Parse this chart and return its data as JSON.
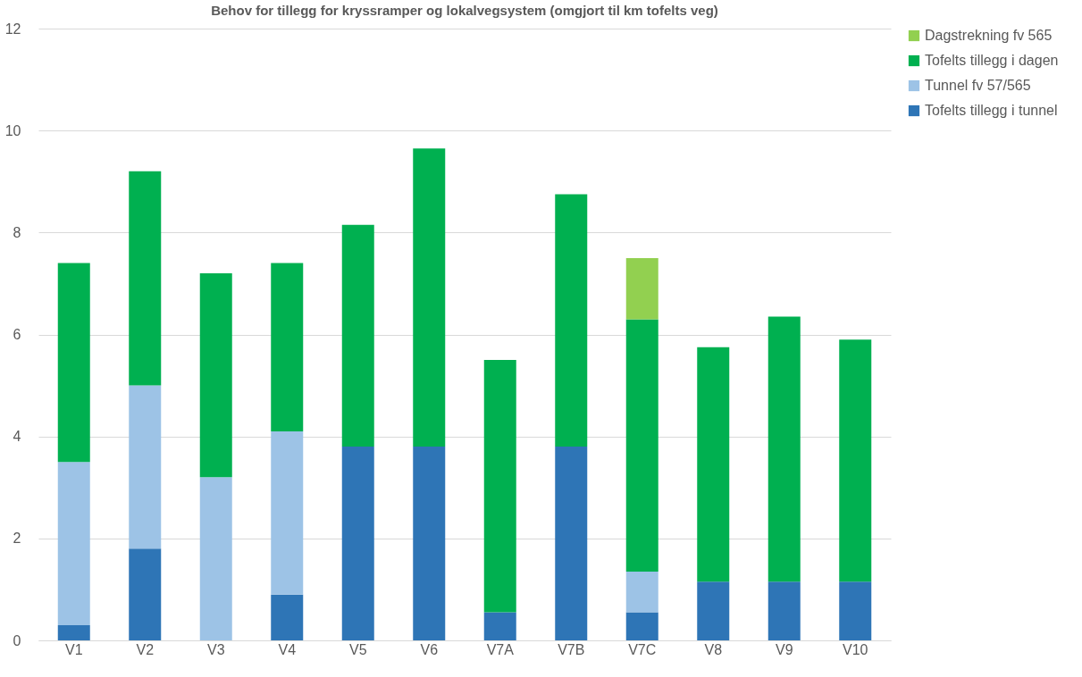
{
  "chart_data": {
    "type": "bar",
    "title": "Behov for tillegg for kryssramper og lokalvegsystem (omgjort til km tofelts veg)",
    "categories": [
      "V1",
      "V2",
      "V3",
      "V4",
      "V5",
      "V6",
      "V7A",
      "V7B",
      "V7C",
      "V8",
      "V9",
      "V10"
    ],
    "stacked": true,
    "series": [
      {
        "name": "Tofelts tillegg i tunnel",
        "color": "#2e75b6",
        "values": [
          0.3,
          1.8,
          0,
          0.9,
          3.8,
          3.8,
          0.55,
          3.8,
          0.55,
          1.15,
          1.15,
          1.15
        ]
      },
      {
        "name": "Tunnel fv 57/565",
        "color": "#9dc3e6",
        "values": [
          3.2,
          3.2,
          3.2,
          3.2,
          0,
          0,
          0,
          0,
          0.8,
          0,
          0,
          0
        ]
      },
      {
        "name": "Tofelts tillegg i dagen",
        "color": "#00b050",
        "values": [
          3.9,
          4.2,
          4.0,
          3.3,
          4.35,
          5.85,
          4.95,
          4.95,
          4.95,
          4.6,
          5.2,
          4.75
        ]
      },
      {
        "name": "Dagstrekning fv 565",
        "color": "#92d050",
        "values": [
          0,
          0,
          0,
          0,
          0,
          0,
          0,
          0,
          1.2,
          0,
          0,
          0
        ]
      }
    ],
    "ylim": [
      0,
      12
    ],
    "yticks": [
      0,
      2,
      4,
      6,
      8,
      10,
      12
    ],
    "grid": "y",
    "legend": "right"
  }
}
